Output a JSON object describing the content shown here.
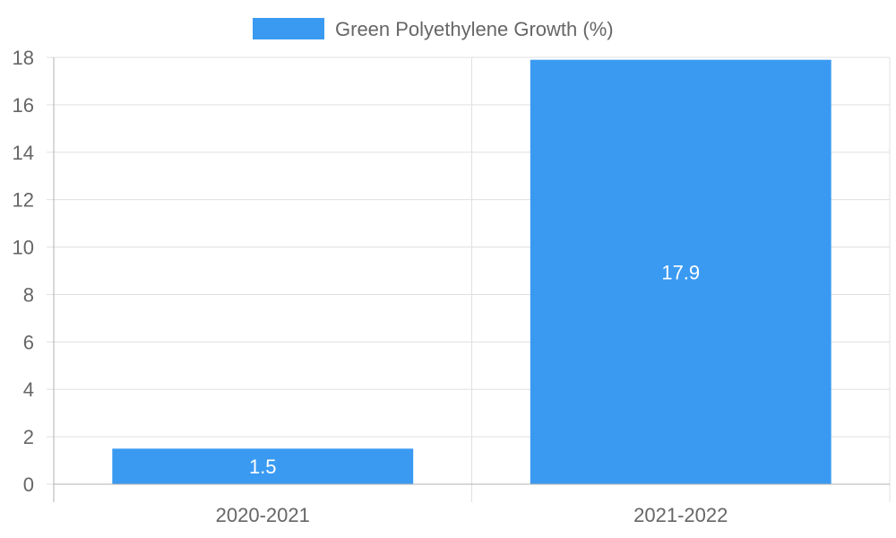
{
  "chart_data": {
    "type": "bar",
    "categories": [
      "2020-2021",
      "2021-2022"
    ],
    "series": [
      {
        "name": "Green Polyethylene Growth (%)",
        "values": [
          1.5,
          17.9
        ],
        "color": "#3a9af2"
      }
    ],
    "data_labels": [
      "1.5",
      "17.9"
    ],
    "ylim": [
      0,
      18
    ],
    "y_ticks": [
      0,
      2,
      4,
      6,
      8,
      10,
      12,
      14,
      16,
      18
    ],
    "legend_position": "top-center",
    "grid": true,
    "colors": {
      "grid": "#e0e0e0",
      "axis": "#b0b0b0",
      "tick_text": "#666666",
      "legend_text": "#666666",
      "data_label": "#ffffff"
    }
  }
}
